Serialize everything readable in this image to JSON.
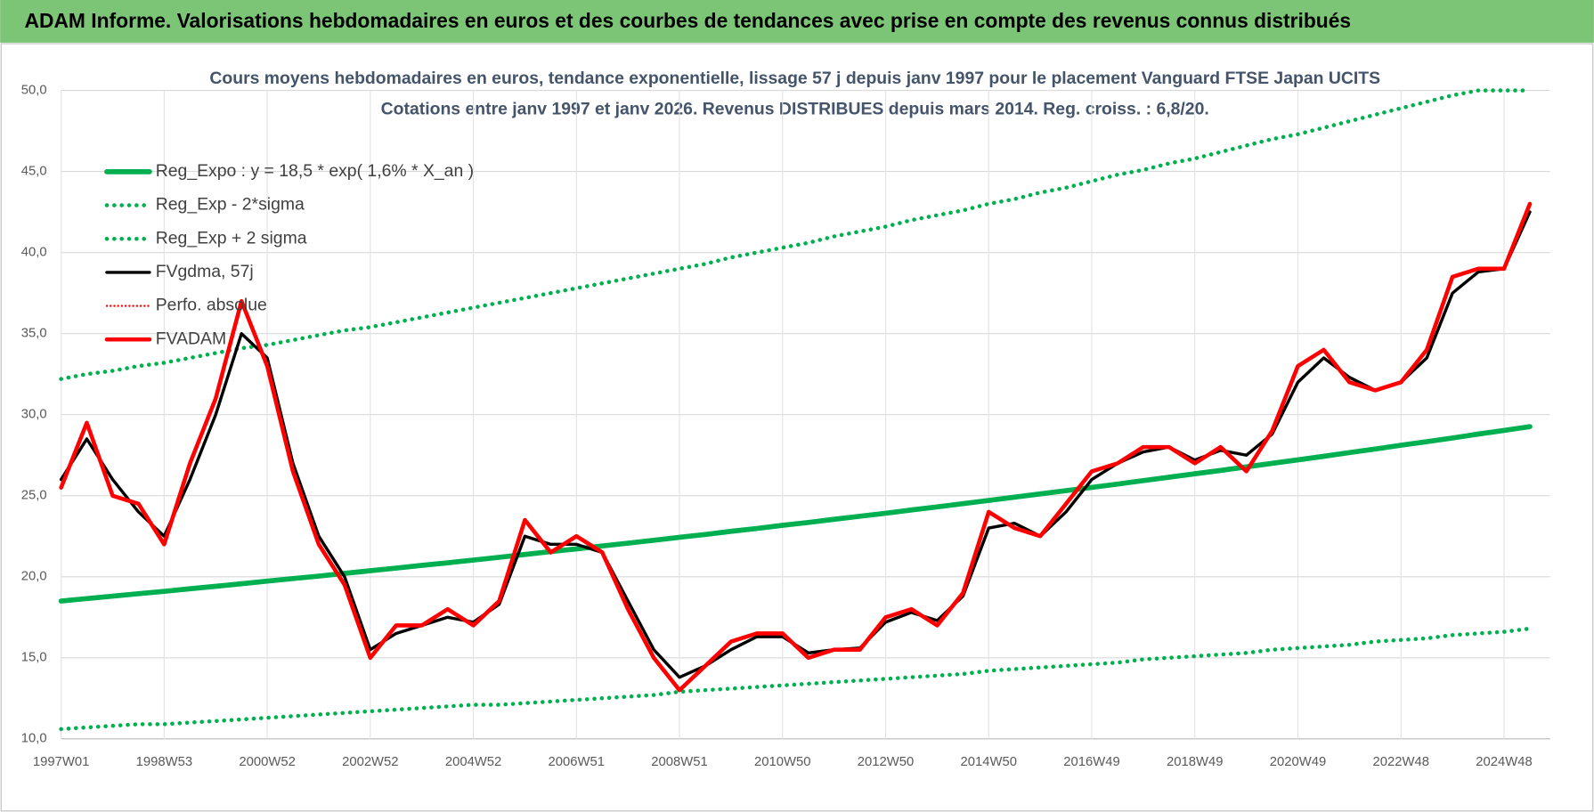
{
  "header": {
    "title": "ADAM Informe. Valorisations hebdomadaires en euros et des courbes de tendances avec prise en compte des revenus connus distribués"
  },
  "chart_data": {
    "type": "line",
    "title": "Cours moyens hebdomadaires en euros, tendance exponentielle, lissage 57 j depuis janv 1997 pour le placement Vanguard FTSE Japan UCITS",
    "subtitle": "Cotations entre janv 1997 et janv 2026. Revenus DISTRIBUES depuis mars 2014.  Reg. croiss. : 6,8/20.",
    "categories": [
      "1997W01",
      null,
      null,
      null,
      "1998W53",
      null,
      null,
      null,
      "2000W52",
      null,
      null,
      null,
      "2002W52",
      null,
      null,
      null,
      "2004W52",
      null,
      null,
      null,
      "2006W51",
      null,
      null,
      null,
      "2008W51",
      null,
      null,
      null,
      "2010W50",
      null,
      null,
      null,
      "2012W50",
      null,
      null,
      null,
      "2014W50",
      null,
      null,
      null,
      "2016W49",
      null,
      null,
      null,
      "2018W49",
      null,
      null,
      null,
      "2020W49",
      null,
      null,
      null,
      "2022W48",
      null,
      null,
      null,
      "2024W48",
      null
    ],
    "ylim": [
      10,
      50
    ],
    "yticks": [
      {
        "value": 10,
        "label": "10,0"
      },
      {
        "value": 15,
        "label": "15,0"
      },
      {
        "value": 20,
        "label": "20,0"
      },
      {
        "value": 25,
        "label": "25,0"
      },
      {
        "value": 30,
        "label": "30,0"
      },
      {
        "value": 35,
        "label": "35,0"
      },
      {
        "value": 40,
        "label": "40,0"
      },
      {
        "value": 45,
        "label": "45,0"
      },
      {
        "value": 50,
        "label": "50,0"
      }
    ],
    "grid": true,
    "legend": "top-left",
    "series": [
      {
        "name": "Reg_Expo : y = 18,5 * exp( 1,6% *  X_an )",
        "color": "#00b050",
        "style": "solid",
        "width": 5,
        "values": [
          18.5,
          18.65,
          18.8,
          18.95,
          19.1,
          19.26,
          19.41,
          19.57,
          19.73,
          19.89,
          20.04,
          20.21,
          20.37,
          20.53,
          20.7,
          20.86,
          21.03,
          21.2,
          21.37,
          21.55,
          21.72,
          21.9,
          22.07,
          22.25,
          22.43,
          22.61,
          22.8,
          22.98,
          23.17,
          23.35,
          23.54,
          23.73,
          23.92,
          24.12,
          24.31,
          24.51,
          24.71,
          24.91,
          25.11,
          25.31,
          25.51,
          25.72,
          25.93,
          26.14,
          26.35,
          26.56,
          26.78,
          27.0,
          27.21,
          27.43,
          27.66,
          27.88,
          28.11,
          28.33,
          28.56,
          28.8,
          29.03,
          29.26
        ]
      },
      {
        "name": "Reg_Exp - 2*sigma",
        "color": "#00b050",
        "style": "dotted",
        "width": 4,
        "values": [
          10.6,
          10.7,
          10.8,
          10.9,
          10.9,
          11.0,
          11.1,
          11.2,
          11.3,
          11.4,
          11.5,
          11.6,
          11.7,
          11.8,
          11.9,
          12.0,
          12.1,
          12.1,
          12.2,
          12.3,
          12.4,
          12.5,
          12.6,
          12.7,
          12.9,
          13.0,
          13.1,
          13.2,
          13.3,
          13.4,
          13.5,
          13.6,
          13.7,
          13.8,
          13.9,
          14.0,
          14.2,
          14.3,
          14.4,
          14.5,
          14.6,
          14.7,
          14.9,
          15.0,
          15.1,
          15.2,
          15.3,
          15.5,
          15.6,
          15.7,
          15.8,
          16.0,
          16.1,
          16.2,
          16.4,
          16.5,
          16.6,
          16.8
        ]
      },
      {
        "name": "Reg_Exp + 2 sigma",
        "color": "#00b050",
        "style": "dotted",
        "width": 4,
        "values": [
          32.2,
          32.5,
          32.7,
          33.0,
          33.2,
          33.5,
          33.8,
          34.1,
          34.3,
          34.6,
          34.9,
          35.2,
          35.4,
          35.7,
          36.0,
          36.3,
          36.6,
          36.9,
          37.2,
          37.5,
          37.8,
          38.1,
          38.4,
          38.7,
          39.0,
          39.3,
          39.7,
          40.0,
          40.3,
          40.6,
          41.0,
          41.3,
          41.6,
          42.0,
          42.3,
          42.6,
          43.0,
          43.3,
          43.7,
          44.0,
          44.4,
          44.8,
          45.1,
          45.5,
          45.8,
          46.2,
          46.6,
          47.0,
          47.3,
          47.7,
          48.1,
          48.5,
          48.9,
          49.3,
          49.7,
          50.0,
          50.0,
          50.0
        ]
      },
      {
        "name": "FVgdma, 57j",
        "color": "#000000",
        "style": "solid",
        "width": 3,
        "values": [
          26,
          28.5,
          26,
          24,
          22.5,
          26,
          30,
          35,
          33.5,
          27,
          22.5,
          20,
          15.5,
          16.5,
          17,
          17.5,
          17.2,
          18.3,
          22.5,
          22,
          22,
          21.5,
          18.5,
          15.5,
          13.8,
          14.5,
          15.5,
          16.3,
          16.3,
          15.3,
          15.5,
          15.6,
          17.2,
          17.8,
          17.3,
          18.8,
          23,
          23.3,
          22.5,
          24,
          26,
          27,
          27.7,
          28,
          27.2,
          27.8,
          27.5,
          28.8,
          32,
          33.5,
          32.3,
          31.5,
          32,
          33.5,
          37.5,
          38.8,
          39,
          42.5
        ]
      },
      {
        "name": "Perfo. absolue",
        "color": "#ff0000",
        "style": "dotted",
        "width": 2,
        "values": [
          null,
          null,
          null,
          null,
          null,
          null,
          null,
          null,
          null,
          null,
          null,
          null,
          null,
          null,
          null,
          null,
          null,
          null,
          null,
          null,
          null,
          null,
          null,
          null,
          null,
          null,
          null,
          null,
          null,
          null,
          null,
          null,
          null,
          null,
          null,
          null,
          null,
          null,
          null,
          null,
          null,
          null,
          null,
          null,
          null,
          null,
          null,
          null,
          null,
          null,
          null,
          null,
          null,
          null,
          null,
          null,
          null,
          null
        ]
      },
      {
        "name": "FVADAM",
        "color": "#ff0000",
        "style": "solid",
        "width": 4,
        "values": [
          25.5,
          29.5,
          25,
          24.5,
          22,
          27,
          31,
          37,
          33,
          26.5,
          22,
          19.5,
          15,
          17,
          17,
          18,
          17,
          18.5,
          23.5,
          21.5,
          22.5,
          21.5,
          18,
          15,
          13,
          14.5,
          16,
          16.5,
          16.5,
          15,
          15.5,
          15.5,
          17.5,
          18,
          17,
          19,
          24,
          23,
          22.5,
          24.5,
          26.5,
          27,
          28,
          28,
          27,
          28,
          26.5,
          29,
          33,
          34,
          32,
          31.5,
          32,
          34,
          38.5,
          39,
          39,
          43
        ]
      }
    ]
  }
}
